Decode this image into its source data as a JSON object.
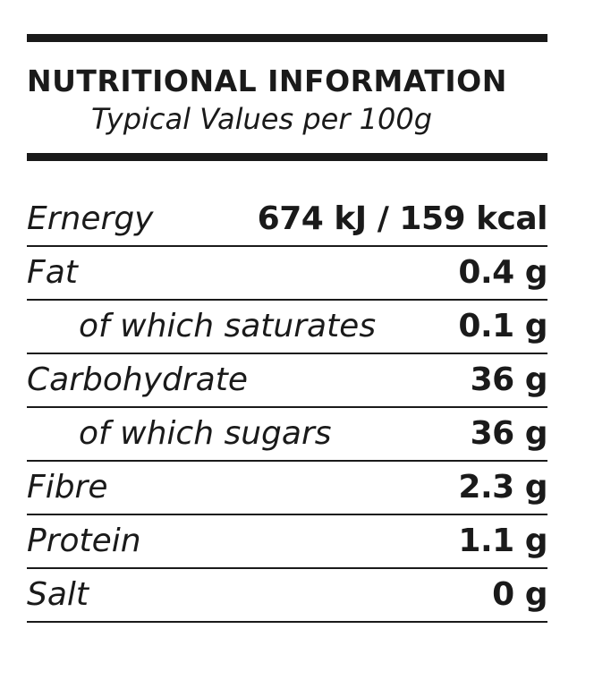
{
  "header": {
    "title": "NUTRITIONAL INFORMATION",
    "subtitle": "Typical Values per 100g"
  },
  "rows": [
    {
      "label": "Ernergy",
      "value": "674 kJ / 159 kcal"
    },
    {
      "label": "Fat",
      "value": "0.4 g"
    },
    {
      "label": "of which saturates",
      "value": "0.1 g"
    },
    {
      "label": "Carbohydrate",
      "value": "36 g"
    },
    {
      "label": "of which sugars",
      "value": "36 g"
    },
    {
      "label": "Fibre",
      "value": "2.3 g"
    },
    {
      "label": "Protein",
      "value": "1.1 g"
    },
    {
      "label": "Salt",
      "value": "0 g"
    }
  ],
  "colors": {
    "text": "#1a1a1a",
    "background": "#ffffff"
  }
}
